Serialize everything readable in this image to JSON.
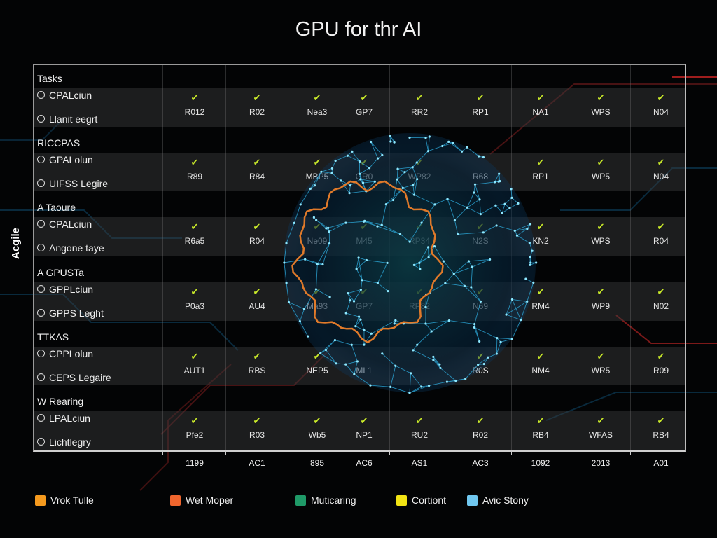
{
  "title": "GPU for thr AI",
  "chart_data": {
    "type": "table",
    "title": "GPU for thr AI",
    "ylabel": "Acgile",
    "x_tick_labels": [
      "1199",
      "AC1",
      "895",
      "AC6",
      "AS1",
      "AC3",
      "1092",
      "2013",
      "A01"
    ],
    "groups": [
      {
        "header": "Tasks",
        "rows": [
          "CPALciun",
          "Llanit eegrt"
        ],
        "cells": [
          {
            "v": "R012",
            "ok": true
          },
          {
            "v": "R02",
            "ok": true
          },
          {
            "v": "Nea3",
            "ok": true
          },
          {
            "v": "GP7",
            "ok": true
          },
          {
            "v": "RR2",
            "ok": true
          },
          {
            "v": "RP1",
            "ok": true
          },
          {
            "v": "NA1",
            "ok": true
          },
          {
            "v": "WPS",
            "ok": true
          },
          {
            "v": "N04",
            "ok": true
          }
        ]
      },
      {
        "header": "RICCPAS",
        "rows": [
          "GPALolun",
          "UIFSS Legire"
        ],
        "cells": [
          {
            "v": "R89",
            "ok": true
          },
          {
            "v": "R84",
            "ok": true
          },
          {
            "v": "MBP5",
            "ok": true
          },
          {
            "v": "GR0",
            "ok": true
          },
          {
            "v": "WP82",
            "ok": true
          },
          {
            "v": "R68",
            "ok": false
          },
          {
            "v": "RP1",
            "ok": true
          },
          {
            "v": "WP5",
            "ok": true
          },
          {
            "v": "N04",
            "ok": true
          }
        ]
      },
      {
        "header": "A Taoure",
        "rows": [
          "CPALciun",
          "Angone taye"
        ],
        "cells": [
          {
            "v": "R6a5",
            "ok": true
          },
          {
            "v": "R04",
            "ok": true
          },
          {
            "v": "Ne09",
            "ok": true
          },
          {
            "v": "M45",
            "ok": true
          },
          {
            "v": "RP34",
            "ok": true
          },
          {
            "v": "N2S",
            "ok": true
          },
          {
            "v": "KN2",
            "ok": true
          },
          {
            "v": "WPS",
            "ok": true
          },
          {
            "v": "R04",
            "ok": true
          }
        ]
      },
      {
        "header": "A GPUSTa",
        "rows": [
          "GPPLciun",
          "GPPS Leght"
        ],
        "cells": [
          {
            "v": "P0a3",
            "ok": true
          },
          {
            "v": "AU4",
            "ok": true
          },
          {
            "v": "Ma93",
            "ok": true
          },
          {
            "v": "GP7",
            "ok": true
          },
          {
            "v": "RP82",
            "ok": true
          },
          {
            "v": "N69",
            "ok": true
          },
          {
            "v": "RM4",
            "ok": true
          },
          {
            "v": "WP9",
            "ok": true
          },
          {
            "v": "N02",
            "ok": true
          }
        ]
      },
      {
        "header": "TTKAS",
        "rows": [
          "CPPLolun",
          "CEPS Legaire"
        ],
        "cells": [
          {
            "v": "AUT1",
            "ok": true
          },
          {
            "v": "RBS",
            "ok": true
          },
          {
            "v": "NEP5",
            "ok": true
          },
          {
            "v": "ML1",
            "ok": false
          },
          {
            "v": "",
            "ok": false
          },
          {
            "v": "R0S",
            "ok": true
          },
          {
            "v": "NM4",
            "ok": true
          },
          {
            "v": "WR5",
            "ok": true
          },
          {
            "v": "R09",
            "ok": true
          }
        ]
      },
      {
        "header": "W Rearing",
        "rows": [
          "LPALciun",
          "Lichtlegry"
        ],
        "cells": [
          {
            "v": "Pfe2",
            "ok": true
          },
          {
            "v": "R03",
            "ok": true
          },
          {
            "v": "Wb5",
            "ok": true
          },
          {
            "v": "NP1",
            "ok": true
          },
          {
            "v": "RU2",
            "ok": true
          },
          {
            "v": "R02",
            "ok": true
          },
          {
            "v": "RB4",
            "ok": true
          },
          {
            "v": "WFAS",
            "ok": true
          },
          {
            "v": "RB4",
            "ok": true
          }
        ]
      }
    ],
    "legend": [
      {
        "label": "Vrok Tulle",
        "color": "#f59a1e"
      },
      {
        "label": "Wet Moper",
        "color": "#f0662e"
      },
      {
        "label": "Muticaring",
        "color": "#1f9a68"
      },
      {
        "label": "Cortiont",
        "color": "#f2e414"
      },
      {
        "label": "Avic Stony",
        "color": "#70c8f0"
      }
    ],
    "check_color": "#c8e82a",
    "brain_mesh_color": "#2fb4e8",
    "brain_outline_color": "#e07a2a"
  }
}
